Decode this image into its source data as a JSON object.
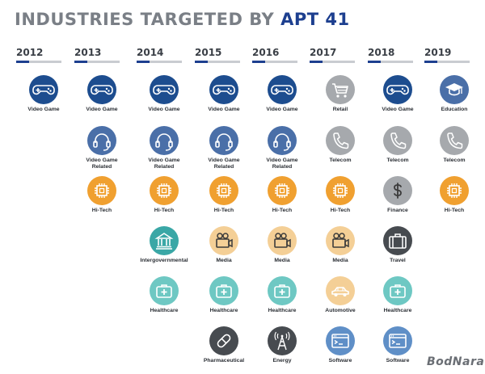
{
  "title": {
    "part1": "INDUSTRIES TARGETED BY ",
    "part2": "APT 41"
  },
  "colors": {
    "navy": "#1d4d8f",
    "slate": "#4a6fa8",
    "orange": "#f0a030",
    "teal": "#3aa7a6",
    "seafoam": "#6ec8c3",
    "peach": "#f4cf96",
    "gray": "#a6a9ad",
    "dark": "#474b50",
    "lightblue": "#5f8fc7",
    "title_gray": "#7a7f86",
    "title_blue": "#1d3f8f"
  },
  "years": [
    {
      "label": "2012",
      "items": [
        {
          "name": "Video Game",
          "icon": "gamepad-icon",
          "color": "navy"
        }
      ]
    },
    {
      "label": "2013",
      "items": [
        {
          "name": "Video Game",
          "icon": "gamepad-icon",
          "color": "navy"
        },
        {
          "name": "Video Game\nRelated",
          "icon": "headset-icon",
          "color": "slate"
        },
        {
          "name": "Hi-Tech",
          "icon": "chip-icon",
          "color": "orange"
        }
      ]
    },
    {
      "label": "2014",
      "items": [
        {
          "name": "Video Game",
          "icon": "gamepad-icon",
          "color": "navy"
        },
        {
          "name": "Video Game\nRelated",
          "icon": "headset-icon",
          "color": "slate"
        },
        {
          "name": "Hi-Tech",
          "icon": "chip-icon",
          "color": "orange"
        },
        {
          "name": "Intergovernmental",
          "icon": "government-building-icon",
          "color": "teal"
        },
        {
          "name": "Healthcare",
          "icon": "medical-kit-icon",
          "color": "seafoam"
        }
      ]
    },
    {
      "label": "2015",
      "items": [
        {
          "name": "Video Game",
          "icon": "gamepad-icon",
          "color": "navy"
        },
        {
          "name": "Video Game\nRelated",
          "icon": "headset-icon",
          "color": "slate"
        },
        {
          "name": "Hi-Tech",
          "icon": "chip-icon",
          "color": "orange"
        },
        {
          "name": "Media",
          "icon": "video-camera-icon",
          "color": "peach"
        },
        {
          "name": "Healthcare",
          "icon": "medical-kit-icon",
          "color": "seafoam"
        },
        {
          "name": "Pharmaceutical",
          "icon": "pill-icon",
          "color": "dark"
        }
      ]
    },
    {
      "label": "2016",
      "items": [
        {
          "name": "Video Game",
          "icon": "gamepad-icon",
          "color": "navy"
        },
        {
          "name": "Video Game\nRelated",
          "icon": "headset-icon",
          "color": "slate"
        },
        {
          "name": "Hi-Tech",
          "icon": "chip-icon",
          "color": "orange"
        },
        {
          "name": "Media",
          "icon": "video-camera-icon",
          "color": "peach"
        },
        {
          "name": "Healthcare",
          "icon": "medical-kit-icon",
          "color": "seafoam"
        },
        {
          "name": "Energy",
          "icon": "radio-tower-icon",
          "color": "dark"
        }
      ]
    },
    {
      "label": "2017",
      "items": [
        {
          "name": "Retail",
          "icon": "shopping-cart-icon",
          "color": "gray"
        },
        {
          "name": "Telecom",
          "icon": "phone-icon",
          "color": "gray"
        },
        {
          "name": "Hi-Tech",
          "icon": "chip-icon",
          "color": "orange"
        },
        {
          "name": "Media",
          "icon": "video-camera-icon",
          "color": "peach"
        },
        {
          "name": "Automotive",
          "icon": "car-icon",
          "color": "peach"
        },
        {
          "name": "Software",
          "icon": "terminal-window-icon",
          "color": "lightblue"
        }
      ]
    },
    {
      "label": "2018",
      "items": [
        {
          "name": "Video Game",
          "icon": "gamepad-icon",
          "color": "navy"
        },
        {
          "name": "Telecom",
          "icon": "phone-icon",
          "color": "gray"
        },
        {
          "name": "Finance",
          "icon": "dollar-icon",
          "color": "gray"
        },
        {
          "name": "Travel",
          "icon": "suitcase-icon",
          "color": "dark"
        },
        {
          "name": "Healthcare",
          "icon": "medical-kit-icon",
          "color": "seafoam"
        },
        {
          "name": "Software",
          "icon": "terminal-window-icon",
          "color": "lightblue"
        }
      ]
    },
    {
      "label": "2019",
      "items": [
        {
          "name": "Education",
          "icon": "graduation-cap-icon",
          "color": "slate"
        },
        {
          "name": "Telecom",
          "icon": "phone-icon",
          "color": "gray"
        },
        {
          "name": "Hi-Tech",
          "icon": "chip-icon",
          "color": "orange"
        }
      ]
    }
  ],
  "logo": {
    "text": "BodNara"
  }
}
